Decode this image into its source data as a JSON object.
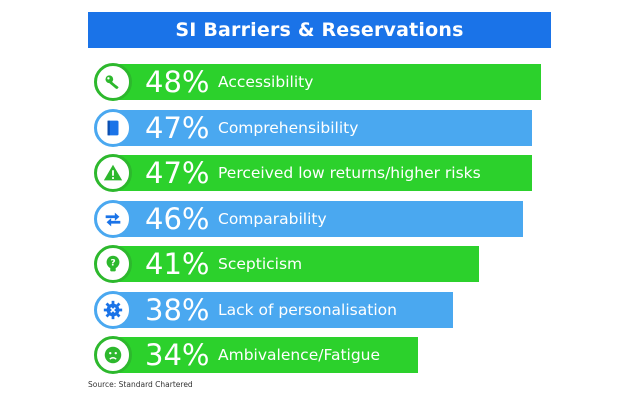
{
  "chart_data": {
    "type": "bar",
    "orientation": "horizontal",
    "title": "SI Barriers & Reservations",
    "value_unit": "%",
    "xlim": [
      0,
      55
    ],
    "grid": false,
    "legend": "none",
    "categories": [
      "Accessibility",
      "Comprehensibility",
      "Perceived low returns/higher risks",
      "Comparability",
      "Scepticism",
      "Lack of personalisation",
      "Ambivalence/Fatigue"
    ],
    "values": [
      48,
      47,
      47,
      46,
      41,
      38,
      34
    ],
    "value_labels": [
      "48%",
      "47%",
      "47%",
      "46%",
      "41%",
      "38%",
      "34%"
    ],
    "bar_colors": [
      "#2cd12c",
      "#4aa8f0",
      "#2cd12c",
      "#4aa8f0",
      "#2cd12c",
      "#4aa8f0",
      "#2cd12c"
    ],
    "icons": [
      "key-icon",
      "book-icon",
      "warning-icon",
      "arrows-exchange-icon",
      "question-bulb-icon",
      "gear-cross-icon",
      "sad-face-icon"
    ]
  },
  "source": "Source: Standard Chartered",
  "colors": {
    "title_bg": "#1a73e8",
    "green": "#2cd12c",
    "green_icon": "#2db82d",
    "blue": "#4aa8f0",
    "blue_icon": "#1a73e8"
  }
}
